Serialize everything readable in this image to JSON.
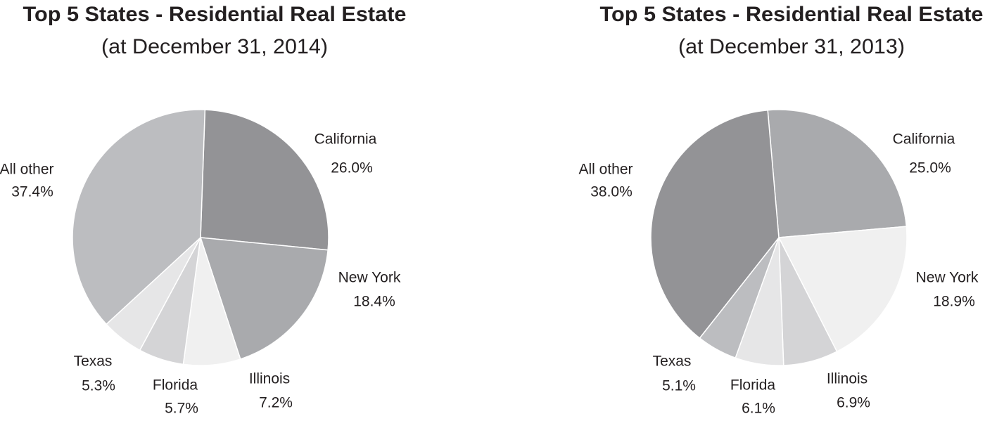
{
  "chart_data": [
    {
      "type": "pie",
      "title": "Top 5 States - Residential Real Estate",
      "subtitle": "(at December 31, 2014)",
      "categories": [
        "California",
        "New York",
        "Illinois",
        "Florida",
        "Texas",
        "All other"
      ],
      "values": [
        26.0,
        18.4,
        7.2,
        5.7,
        5.3,
        37.4
      ],
      "value_labels": [
        "26.0%",
        "18.4%",
        "7.2%",
        "5.7%",
        "5.3%",
        "37.4%"
      ],
      "colors": [
        "#939396",
        "#a9aaad",
        "#f0f0f0",
        "#d4d4d6",
        "#e6e6e7",
        "#bcbdc0"
      ]
    },
    {
      "type": "pie",
      "title": "Top 5 States - Residential Real Estate",
      "subtitle": "(at December 31, 2013)",
      "categories": [
        "California",
        "New York",
        "Illinois",
        "Florida",
        "Texas",
        "All other"
      ],
      "values": [
        25.0,
        18.9,
        6.9,
        6.1,
        5.1,
        38.0
      ],
      "value_labels": [
        "25.0%",
        "18.9%",
        "6.9%",
        "6.1%",
        "5.1%",
        "38.0%"
      ],
      "colors": [
        "#a9aaad",
        "#f0f0f0",
        "#d4d4d6",
        "#e6e6e7",
        "#bcbdc0",
        "#939396"
      ]
    }
  ]
}
